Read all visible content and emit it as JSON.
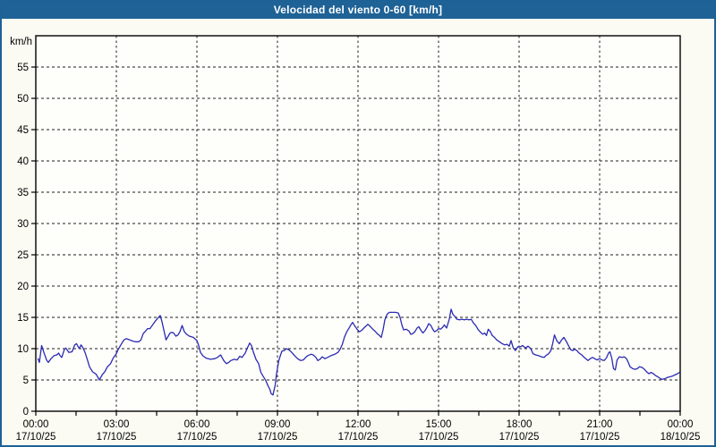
{
  "title": "Velocidad del viento 0-60 [km/h]",
  "colors": {
    "titlebar_bg": "#1e6296",
    "frame_border": "#1d6296",
    "page_bg": "#fbfbf3",
    "plot_bg": "#fefefa",
    "line": "#2b2bb4",
    "grid": "#1f1f1f",
    "axis": "#000000",
    "text": "#000000"
  },
  "chart_data": {
    "type": "line",
    "title": "Velocidad del viento 0-60 [km/h]",
    "xlabel": "",
    "ylabel": "km/h",
    "ylim": [
      0,
      60
    ],
    "y_tick_step": 5,
    "y_tick_labels": [
      0,
      5,
      10,
      15,
      20,
      25,
      30,
      35,
      40,
      45,
      50,
      55
    ],
    "x_range_minutes": [
      0,
      1440
    ],
    "x_major_step_min": 180,
    "x_minor_tick_step_min": 90,
    "grid": "dashed",
    "legend": "none",
    "x_labels": [
      {
        "min": 0,
        "time": "00:00",
        "date": "17/10/25"
      },
      {
        "min": 180,
        "time": "03:00",
        "date": "17/10/25"
      },
      {
        "min": 360,
        "time": "06:00",
        "date": "17/10/25"
      },
      {
        "min": 540,
        "time": "09:00",
        "date": "17/10/25"
      },
      {
        "min": 720,
        "time": "12:00",
        "date": "17/10/25"
      },
      {
        "min": 900,
        "time": "15:00",
        "date": "17/10/25"
      },
      {
        "min": 1080,
        "time": "18:00",
        "date": "17/10/25"
      },
      {
        "min": 1260,
        "time": "21:00",
        "date": "17/10/25"
      },
      {
        "min": 1440,
        "time": "00:00",
        "date": "18/10/25"
      }
    ],
    "series": [
      {
        "name": "Velocidad del viento",
        "unit": "km/h",
        "points": [
          [
            5,
            8.4
          ],
          [
            8,
            7.8
          ],
          [
            13,
            10.5
          ],
          [
            18,
            9.4
          ],
          [
            24,
            8.2
          ],
          [
            28,
            7.8
          ],
          [
            34,
            8.4
          ],
          [
            41,
            8.9
          ],
          [
            47,
            9.0
          ],
          [
            51,
            9.3
          ],
          [
            54,
            8.9
          ],
          [
            58,
            8.6
          ],
          [
            64,
            9.9
          ],
          [
            67,
            10.1
          ],
          [
            74,
            9.4
          ],
          [
            81,
            9.5
          ],
          [
            87,
            10.6
          ],
          [
            91,
            10.8
          ],
          [
            97,
            10.0
          ],
          [
            101,
            10.6
          ],
          [
            105,
            10.2
          ],
          [
            110,
            9.4
          ],
          [
            115,
            8.3
          ],
          [
            120,
            7.1
          ],
          [
            127,
            6.3
          ],
          [
            135,
            5.9
          ],
          [
            142,
            5.0
          ],
          [
            149,
            5.9
          ],
          [
            154,
            6.3
          ],
          [
            160,
            7.1
          ],
          [
            167,
            7.6
          ],
          [
            173,
            8.5
          ],
          [
            180,
            9.2
          ],
          [
            183,
            9.7
          ],
          [
            190,
            10.6
          ],
          [
            197,
            11.4
          ],
          [
            202,
            11.6
          ],
          [
            210,
            11.4
          ],
          [
            217,
            11.2
          ],
          [
            223,
            11.1
          ],
          [
            230,
            11.1
          ],
          [
            235,
            11.4
          ],
          [
            240,
            12.4
          ],
          [
            245,
            12.8
          ],
          [
            250,
            13.2
          ],
          [
            255,
            13.2
          ],
          [
            260,
            13.7
          ],
          [
            267,
            14.4
          ],
          [
            273,
            14.9
          ],
          [
            278,
            15.3
          ],
          [
            282,
            14.3
          ],
          [
            286,
            13.0
          ],
          [
            291,
            11.4
          ],
          [
            296,
            12.0
          ],
          [
            300,
            12.5
          ],
          [
            304,
            12.6
          ],
          [
            308,
            12.5
          ],
          [
            313,
            12.0
          ],
          [
            318,
            12.2
          ],
          [
            322,
            12.7
          ],
          [
            327,
            13.7
          ],
          [
            332,
            12.7
          ],
          [
            337,
            12.3
          ],
          [
            343,
            12.0
          ],
          [
            352,
            11.8
          ],
          [
            360,
            11.3
          ],
          [
            364,
            10.5
          ],
          [
            368,
            9.4
          ],
          [
            373,
            8.9
          ],
          [
            380,
            8.5
          ],
          [
            390,
            8.3
          ],
          [
            400,
            8.4
          ],
          [
            406,
            8.6
          ],
          [
            413,
            9.0
          ],
          [
            420,
            8.1
          ],
          [
            426,
            7.6
          ],
          [
            431,
            7.8
          ],
          [
            436,
            8.1
          ],
          [
            443,
            8.3
          ],
          [
            450,
            8.2
          ],
          [
            456,
            8.8
          ],
          [
            461,
            8.6
          ],
          [
            468,
            9.3
          ],
          [
            472,
            10.0
          ],
          [
            478,
            10.9
          ],
          [
            482,
            10.5
          ],
          [
            486,
            9.5
          ],
          [
            492,
            8.3
          ],
          [
            498,
            7.6
          ],
          [
            503,
            6.2
          ],
          [
            508,
            5.6
          ],
          [
            514,
            4.9
          ],
          [
            518,
            4.2
          ],
          [
            523,
            3.5
          ],
          [
            526,
            2.8
          ],
          [
            530,
            2.6
          ],
          [
            535,
            4.2
          ],
          [
            538,
            6.0
          ],
          [
            543,
            8.1
          ],
          [
            547,
            9.0
          ],
          [
            550,
            9.6
          ],
          [
            555,
            9.7
          ],
          [
            560,
            10.0
          ],
          [
            566,
            9.8
          ],
          [
            572,
            9.4
          ],
          [
            578,
            8.9
          ],
          [
            585,
            8.4
          ],
          [
            592,
            8.1
          ],
          [
            598,
            8.2
          ],
          [
            603,
            8.6
          ],
          [
            608,
            8.9
          ],
          [
            615,
            9.1
          ],
          [
            620,
            9.0
          ],
          [
            626,
            8.6
          ],
          [
            630,
            8.1
          ],
          [
            635,
            8.3
          ],
          [
            640,
            8.7
          ],
          [
            646,
            8.4
          ],
          [
            652,
            8.6
          ],
          [
            660,
            8.9
          ],
          [
            668,
            9.1
          ],
          [
            675,
            9.4
          ],
          [
            680,
            9.9
          ],
          [
            685,
            10.7
          ],
          [
            690,
            11.9
          ],
          [
            695,
            12.7
          ],
          [
            700,
            13.3
          ],
          [
            704,
            13.8
          ],
          [
            708,
            14.2
          ],
          [
            713,
            13.6
          ],
          [
            718,
            13.1
          ],
          [
            723,
            12.7
          ],
          [
            728,
            12.9
          ],
          [
            733,
            13.3
          ],
          [
            738,
            13.6
          ],
          [
            742,
            13.9
          ],
          [
            748,
            13.5
          ],
          [
            753,
            13.1
          ],
          [
            758,
            12.8
          ],
          [
            763,
            12.4
          ],
          [
            768,
            12.1
          ],
          [
            772,
            11.8
          ],
          [
            776,
            13.0
          ],
          [
            780,
            14.6
          ],
          [
            785,
            15.5
          ],
          [
            790,
            15.8
          ],
          [
            797,
            15.8
          ],
          [
            804,
            15.8
          ],
          [
            810,
            15.7
          ],
          [
            814,
            15.0
          ],
          [
            818,
            13.8
          ],
          [
            822,
            13.0
          ],
          [
            828,
            13.1
          ],
          [
            834,
            12.8
          ],
          [
            838,
            12.3
          ],
          [
            842,
            12.4
          ],
          [
            847,
            12.7
          ],
          [
            852,
            13.3
          ],
          [
            856,
            13.5
          ],
          [
            860,
            13.0
          ],
          [
            865,
            12.5
          ],
          [
            870,
            12.9
          ],
          [
            874,
            13.4
          ],
          [
            878,
            14.0
          ],
          [
            883,
            13.7
          ],
          [
            887,
            13.1
          ],
          [
            891,
            12.7
          ],
          [
            896,
            12.9
          ],
          [
            900,
            13.2
          ],
          [
            904,
            13.1
          ],
          [
            909,
            13.4
          ],
          [
            913,
            13.8
          ],
          [
            918,
            13.3
          ],
          [
            924,
            14.7
          ],
          [
            928,
            16.3
          ],
          [
            932,
            15.5
          ],
          [
            937,
            15.1
          ],
          [
            941,
            14.7
          ],
          [
            947,
            14.6
          ],
          [
            952,
            14.7
          ],
          [
            958,
            14.6
          ],
          [
            962,
            14.7
          ],
          [
            968,
            14.6
          ],
          [
            973,
            14.7
          ],
          [
            978,
            14.1
          ],
          [
            983,
            13.7
          ],
          [
            988,
            13.1
          ],
          [
            994,
            12.6
          ],
          [
            999,
            12.3
          ],
          [
            1003,
            12.5
          ],
          [
            1007,
            12.1
          ],
          [
            1011,
            13.1
          ],
          [
            1016,
            12.7
          ],
          [
            1020,
            12.1
          ],
          [
            1025,
            11.8
          ],
          [
            1030,
            11.4
          ],
          [
            1036,
            11.1
          ],
          [
            1042,
            10.8
          ],
          [
            1048,
            10.6
          ],
          [
            1053,
            10.7
          ],
          [
            1058,
            10.4
          ],
          [
            1062,
            11.3
          ],
          [
            1067,
            10.1
          ],
          [
            1072,
            9.7
          ],
          [
            1077,
            10.3
          ],
          [
            1083,
            10.3
          ],
          [
            1088,
            10.5
          ],
          [
            1094,
            10.1
          ],
          [
            1100,
            10.4
          ],
          [
            1106,
            10.0
          ],
          [
            1111,
            9.2
          ],
          [
            1117,
            9.0
          ],
          [
            1123,
            8.9
          ],
          [
            1130,
            8.7
          ],
          [
            1136,
            8.6
          ],
          [
            1140,
            8.9
          ],
          [
            1146,
            9.2
          ],
          [
            1151,
            9.7
          ],
          [
            1155,
            10.8
          ],
          [
            1159,
            12.2
          ],
          [
            1164,
            11.3
          ],
          [
            1170,
            10.8
          ],
          [
            1175,
            11.4
          ],
          [
            1180,
            11.8
          ],
          [
            1186,
            11.1
          ],
          [
            1191,
            10.4
          ],
          [
            1196,
            9.8
          ],
          [
            1200,
            9.7
          ],
          [
            1204,
            9.9
          ],
          [
            1209,
            9.7
          ],
          [
            1214,
            9.3
          ],
          [
            1220,
            9.0
          ],
          [
            1224,
            8.7
          ],
          [
            1229,
            8.4
          ],
          [
            1234,
            8.1
          ],
          [
            1239,
            8.4
          ],
          [
            1244,
            8.6
          ],
          [
            1249,
            8.4
          ],
          [
            1254,
            8.2
          ],
          [
            1260,
            8.4
          ],
          [
            1265,
            8.2
          ],
          [
            1270,
            8.1
          ],
          [
            1275,
            8.5
          ],
          [
            1280,
            9.3
          ],
          [
            1283,
            9.5
          ],
          [
            1287,
            8.5
          ],
          [
            1291,
            6.8
          ],
          [
            1295,
            6.6
          ],
          [
            1299,
            8.2
          ],
          [
            1304,
            8.7
          ],
          [
            1310,
            8.6
          ],
          [
            1315,
            8.7
          ],
          [
            1320,
            8.4
          ],
          [
            1324,
            7.8
          ],
          [
            1328,
            7.1
          ],
          [
            1334,
            6.8
          ],
          [
            1339,
            6.7
          ],
          [
            1344,
            6.8
          ],
          [
            1349,
            7.1
          ],
          [
            1355,
            7.0
          ],
          [
            1360,
            6.7
          ],
          [
            1365,
            6.3
          ],
          [
            1370,
            6.0
          ],
          [
            1375,
            6.2
          ],
          [
            1380,
            6.0
          ],
          [
            1385,
            5.7
          ],
          [
            1390,
            5.5
          ],
          [
            1396,
            5.2
          ],
          [
            1400,
            5.1
          ],
          [
            1406,
            5.2
          ],
          [
            1411,
            5.4
          ],
          [
            1417,
            5.5
          ],
          [
            1422,
            5.6
          ],
          [
            1428,
            5.8
          ],
          [
            1434,
            6.0
          ],
          [
            1438,
            6.2
          ]
        ]
      }
    ]
  }
}
